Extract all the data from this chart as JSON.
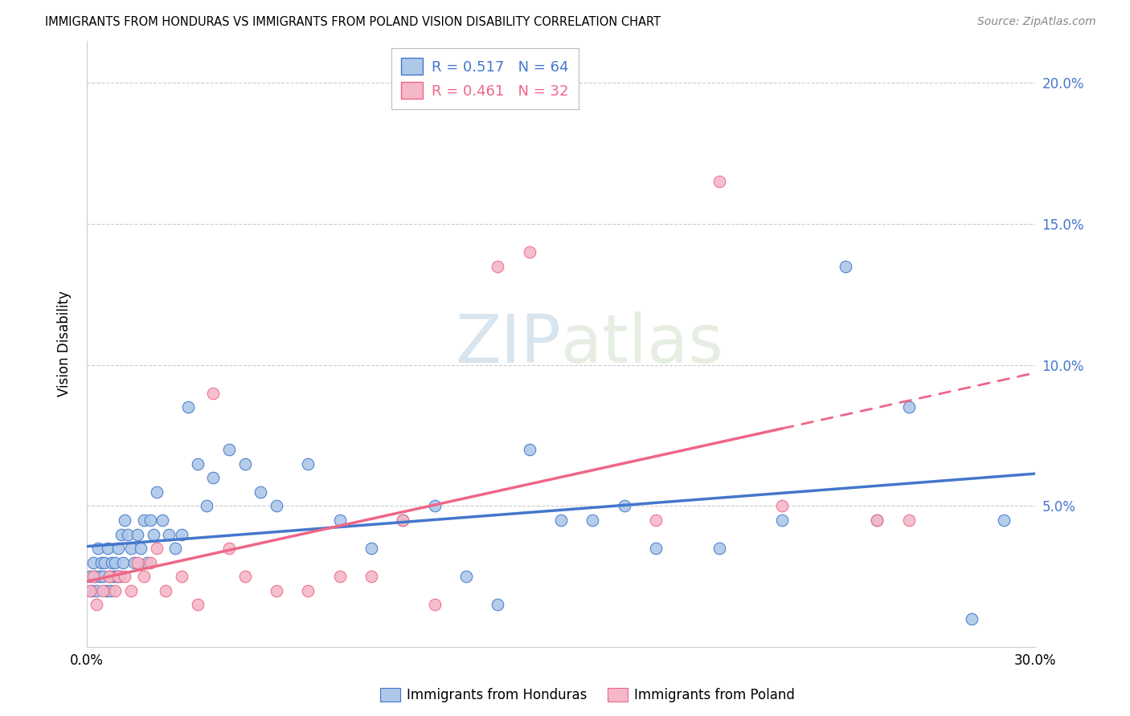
{
  "title": "IMMIGRANTS FROM HONDURAS VS IMMIGRANTS FROM POLAND VISION DISABILITY CORRELATION CHART",
  "source": "Source: ZipAtlas.com",
  "ylabel": "Vision Disability",
  "ytick_values": [
    0.0,
    5.0,
    10.0,
    15.0,
    20.0
  ],
  "xtick_values": [
    0.0,
    30.0
  ],
  "xlim": [
    0.0,
    30.0
  ],
  "ylim": [
    0.0,
    21.5
  ],
  "R_honduras": 0.517,
  "N_honduras": 64,
  "R_poland": 0.461,
  "N_poland": 32,
  "color_honduras": "#adc8e8",
  "color_poland": "#f5b8c8",
  "color_line_honduras": "#4477cc",
  "color_line_poland": "#ee6688",
  "legend_label_honduras": "Immigrants from Honduras",
  "legend_label_poland": "Immigrants from Poland",
  "honduras_x": [
    0.1,
    0.15,
    0.2,
    0.25,
    0.3,
    0.35,
    0.4,
    0.45,
    0.5,
    0.55,
    0.6,
    0.65,
    0.7,
    0.75,
    0.8,
    0.85,
    0.9,
    0.95,
    1.0,
    1.05,
    1.1,
    1.15,
    1.2,
    1.3,
    1.4,
    1.5,
    1.6,
    1.7,
    1.8,
    1.9,
    2.0,
    2.1,
    2.2,
    2.4,
    2.6,
    2.8,
    3.0,
    3.2,
    3.5,
    3.8,
    4.0,
    4.5,
    5.0,
    5.5,
    6.0,
    7.0,
    8.0,
    9.0,
    10.0,
    11.0,
    12.0,
    13.0,
    14.0,
    15.0,
    16.0,
    17.0,
    18.0,
    20.0,
    22.0,
    24.0,
    25.0,
    26.0,
    28.0,
    29.0
  ],
  "honduras_y": [
    2.5,
    2.0,
    3.0,
    2.5,
    2.0,
    3.5,
    2.5,
    3.0,
    2.5,
    3.0,
    2.0,
    3.5,
    2.5,
    2.0,
    3.0,
    2.5,
    3.0,
    2.5,
    3.5,
    2.5,
    4.0,
    3.0,
    4.5,
    4.0,
    3.5,
    3.0,
    4.0,
    3.5,
    4.5,
    3.0,
    4.5,
    4.0,
    5.5,
    4.5,
    4.0,
    3.5,
    4.0,
    8.5,
    6.5,
    5.0,
    6.0,
    7.0,
    6.5,
    5.5,
    5.0,
    6.5,
    4.5,
    3.5,
    4.5,
    5.0,
    2.5,
    1.5,
    7.0,
    4.5,
    4.5,
    5.0,
    3.5,
    3.5,
    4.5,
    13.5,
    4.5,
    8.5,
    1.0,
    4.5
  ],
  "poland_x": [
    0.1,
    0.2,
    0.3,
    0.5,
    0.7,
    0.9,
    1.0,
    1.2,
    1.4,
    1.6,
    1.8,
    2.0,
    2.2,
    2.5,
    3.0,
    3.5,
    4.0,
    4.5,
    5.0,
    6.0,
    7.0,
    8.0,
    9.0,
    10.0,
    11.0,
    13.0,
    14.0,
    18.0,
    20.0,
    22.0,
    25.0,
    26.0
  ],
  "poland_y": [
    2.0,
    2.5,
    1.5,
    2.0,
    2.5,
    2.0,
    2.5,
    2.5,
    2.0,
    3.0,
    2.5,
    3.0,
    3.5,
    2.0,
    2.5,
    1.5,
    9.0,
    3.5,
    2.5,
    2.0,
    2.0,
    2.5,
    2.5,
    4.5,
    1.5,
    13.5,
    14.0,
    4.5,
    16.5,
    5.0,
    4.5,
    4.5
  ],
  "watermark_zip": "ZIP",
  "watermark_atlas": "atlas",
  "line_solid_end_x": 22.0
}
